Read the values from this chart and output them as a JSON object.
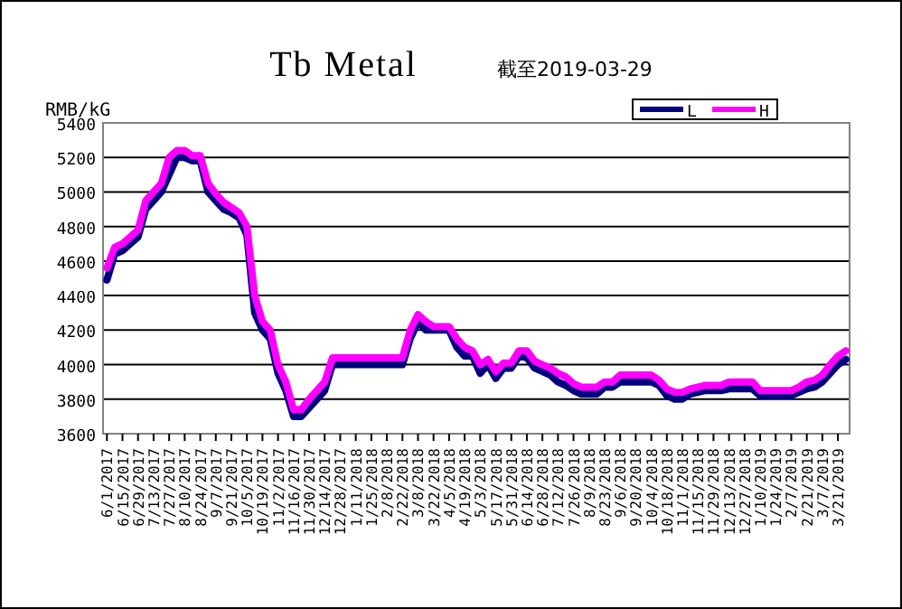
{
  "chart_data": {
    "type": "line",
    "title": "Tb Metal",
    "subtitle": "截至2019-03-29",
    "ylabel": "RMB/kG",
    "categories": [
      "6/1/2017",
      null,
      "6/15/2017",
      null,
      "6/29/2017",
      null,
      "7/13/2017",
      null,
      "7/27/2017",
      null,
      "8/10/2017",
      null,
      "8/24/2017",
      null,
      "9/7/2017",
      null,
      "9/21/2017",
      null,
      "10/5/2017",
      null,
      "10/19/2017",
      null,
      "11/2/2017",
      null,
      "11/16/2017",
      null,
      "11/30/2017",
      null,
      "12/14/2017",
      null,
      "12/28/2017",
      null,
      "1/11/2018",
      null,
      "1/25/2018",
      null,
      "2/8/2018",
      null,
      "2/22/2018",
      null,
      "3/8/2018",
      null,
      "3/22/2018",
      null,
      "4/5/2018",
      null,
      "4/19/2018",
      null,
      "5/3/2018",
      null,
      "5/17/2018",
      null,
      "5/31/2018",
      null,
      "6/14/2018",
      null,
      "6/28/2018",
      null,
      "7/12/2018",
      null,
      "7/26/2018",
      null,
      "8/9/2018",
      null,
      "8/23/2018",
      null,
      "9/6/2018",
      null,
      "9/20/2018",
      null,
      "10/4/2018",
      null,
      "10/18/2018",
      null,
      "11/1/2018",
      null,
      "11/15/2018",
      null,
      "11/29/2018",
      null,
      "12/13/2018",
      null,
      "12/27/2018",
      null,
      "1/10/2019",
      null,
      "1/24/2019",
      null,
      "2/7/2019",
      null,
      "2/21/2019",
      null,
      "3/7/2019",
      null,
      "3/21/2019",
      null
    ],
    "series": [
      {
        "name": "L",
        "color": "#000080",
        "values": [
          4490,
          4640,
          4660,
          4700,
          4740,
          4900,
          4950,
          5000,
          5100,
          5200,
          5200,
          5180,
          5180,
          5000,
          4950,
          4900,
          4880,
          4850,
          4750,
          4300,
          4200,
          4150,
          3950,
          3850,
          3700,
          3700,
          3750,
          3800,
          3850,
          4000,
          4000,
          4000,
          4000,
          4000,
          4000,
          4000,
          4000,
          4000,
          4000,
          4150,
          4250,
          4200,
          4200,
          4200,
          4200,
          4100,
          4050,
          4050,
          3950,
          4000,
          3920,
          3980,
          3980,
          4050,
          4040,
          3980,
          3960,
          3940,
          3900,
          3880,
          3850,
          3830,
          3830,
          3830,
          3870,
          3870,
          3900,
          3900,
          3900,
          3900,
          3900,
          3880,
          3820,
          3800,
          3800,
          3830,
          3840,
          3850,
          3850,
          3850,
          3860,
          3860,
          3860,
          3860,
          3820,
          3820,
          3820,
          3820,
          3820,
          3840,
          3860,
          3870,
          3900,
          3950,
          4000,
          4030
        ]
      },
      {
        "name": "H",
        "color": "#ff00ff",
        "values": [
          4560,
          4680,
          4700,
          4740,
          4780,
          4950,
          5000,
          5050,
          5200,
          5240,
          5240,
          5210,
          5210,
          5050,
          4990,
          4940,
          4910,
          4880,
          4800,
          4400,
          4250,
          4200,
          4000,
          3900,
          3740,
          3740,
          3800,
          3850,
          3900,
          4040,
          4040,
          4040,
          4040,
          4040,
          4040,
          4040,
          4040,
          4040,
          4040,
          4200,
          4290,
          4250,
          4220,
          4220,
          4220,
          4150,
          4100,
          4080,
          4000,
          4030,
          3960,
          4010,
          4010,
          4080,
          4080,
          4020,
          4000,
          3980,
          3950,
          3930,
          3890,
          3870,
          3870,
          3870,
          3900,
          3900,
          3940,
          3940,
          3940,
          3940,
          3940,
          3910,
          3860,
          3840,
          3840,
          3860,
          3870,
          3880,
          3880,
          3880,
          3900,
          3900,
          3900,
          3900,
          3850,
          3850,
          3850,
          3850,
          3850,
          3870,
          3900,
          3910,
          3940,
          4000,
          4050,
          4080
        ]
      }
    ],
    "ylim": [
      3600,
      5400
    ],
    "yticks": [
      3600,
      3800,
      4000,
      4200,
      4400,
      4600,
      4800,
      5000,
      5200,
      5400
    ],
    "grid": "y",
    "legend": "top right",
    "marker": "none",
    "line_style": "solid"
  }
}
